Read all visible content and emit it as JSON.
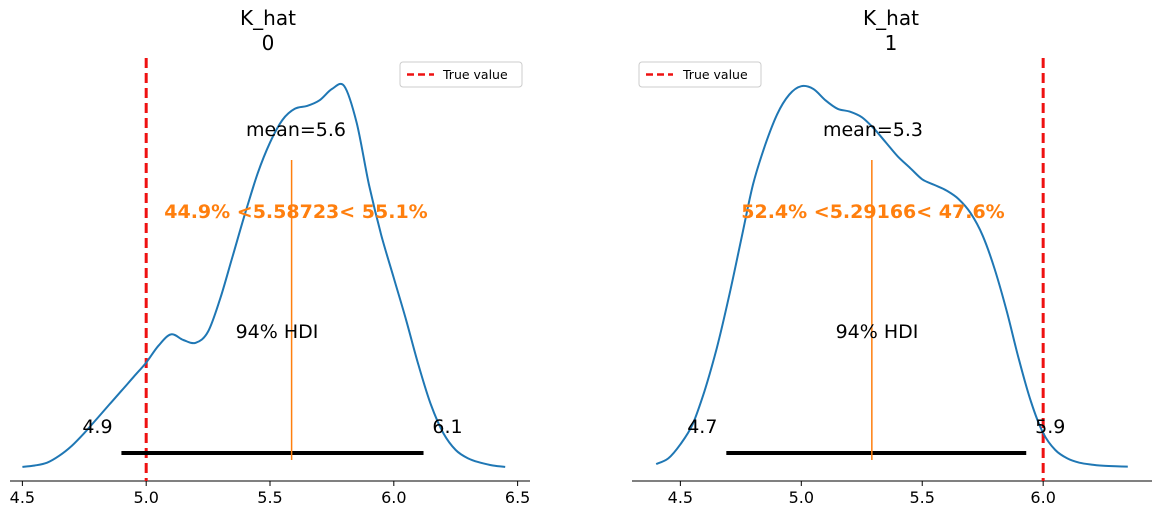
{
  "colors": {
    "density": "#1f77b4",
    "reference": "#ff7f0e",
    "true_value": "#ee1111",
    "hdi": "#000000",
    "axis": "#000000"
  },
  "chart_data": [
    {
      "type": "line",
      "title": "K_hat",
      "subtitle": "0",
      "xlim": [
        4.45,
        6.55
      ],
      "x_ticks": [
        4.5,
        5.0,
        5.5,
        6.0,
        6.5
      ],
      "x_tick_labels": [
        "4.5",
        "5.0",
        "5.5",
        "6.0",
        "6.5"
      ],
      "density_x": [
        4.5,
        4.55,
        4.6,
        4.65,
        4.7,
        4.75,
        4.8,
        4.85,
        4.9,
        4.95,
        5.0,
        5.05,
        5.1,
        5.15,
        5.2,
        5.25,
        5.3,
        5.35,
        5.4,
        5.45,
        5.5,
        5.55,
        5.6,
        5.65,
        5.7,
        5.75,
        5.8,
        5.85,
        5.9,
        5.95,
        6.0,
        6.05,
        6.1,
        6.15,
        6.2,
        6.25,
        6.3,
        6.35,
        6.4,
        6.45
      ],
      "density_y": [
        0.0,
        0.005,
        0.015,
        0.04,
        0.075,
        0.12,
        0.17,
        0.22,
        0.27,
        0.32,
        0.37,
        0.43,
        0.47,
        0.45,
        0.44,
        0.48,
        0.6,
        0.75,
        0.9,
        1.04,
        1.15,
        1.23,
        1.27,
        1.28,
        1.3,
        1.34,
        1.35,
        1.22,
        1.0,
        0.82,
        0.67,
        0.52,
        0.36,
        0.22,
        0.12,
        0.06,
        0.03,
        0.015,
        0.005,
        0.0
      ],
      "ylim": [
        -0.05,
        1.45
      ],
      "stats": {
        "mean_label": "mean=5.6",
        "ref_val": 5.58723,
        "ref_label": "44.9% <5.58723< 55.1%",
        "hdi_label": "94% HDI",
        "hdi": [
          4.9,
          6.12
        ],
        "hdi_low_label": "4.9",
        "hdi_high_label": "6.1",
        "true_value": 5.0
      },
      "legend": {
        "label": "True value",
        "position": "upper right"
      }
    },
    {
      "type": "line",
      "title": "K_hat",
      "subtitle": "1",
      "xlim": [
        4.3,
        6.45
      ],
      "x_ticks": [
        4.5,
        5.0,
        5.5,
        6.0
      ],
      "x_tick_labels": [
        "4.5",
        "5.0",
        "5.5",
        "6.0"
      ],
      "density_x": [
        4.4,
        4.45,
        4.5,
        4.55,
        4.6,
        4.65,
        4.7,
        4.75,
        4.8,
        4.85,
        4.9,
        4.95,
        5.0,
        5.05,
        5.1,
        5.15,
        5.2,
        5.25,
        5.3,
        5.35,
        5.4,
        5.45,
        5.5,
        5.55,
        5.6,
        5.65,
        5.7,
        5.75,
        5.8,
        5.85,
        5.9,
        5.95,
        6.0,
        6.05,
        6.1,
        6.15,
        6.2,
        6.25,
        6.3,
        6.35
      ],
      "density_y": [
        0.01,
        0.03,
        0.08,
        0.15,
        0.27,
        0.42,
        0.6,
        0.8,
        1.0,
        1.14,
        1.25,
        1.32,
        1.35,
        1.34,
        1.3,
        1.27,
        1.26,
        1.24,
        1.2,
        1.15,
        1.1,
        1.06,
        1.02,
        1.0,
        0.98,
        0.95,
        0.9,
        0.82,
        0.7,
        0.55,
        0.38,
        0.23,
        0.12,
        0.06,
        0.03,
        0.015,
        0.008,
        0.004,
        0.002,
        0.001
      ],
      "ylim": [
        -0.05,
        1.45
      ],
      "stats": {
        "mean_label": "mean=5.3",
        "ref_val": 5.29166,
        "ref_label": "52.4% <5.29166< 47.6%",
        "hdi_label": "94% HDI",
        "hdi": [
          4.69,
          5.93
        ],
        "hdi_low_label": "4.7",
        "hdi_high_label": "5.9",
        "true_value": 6.0
      },
      "legend": {
        "label": "True value",
        "position": "upper left"
      }
    }
  ]
}
